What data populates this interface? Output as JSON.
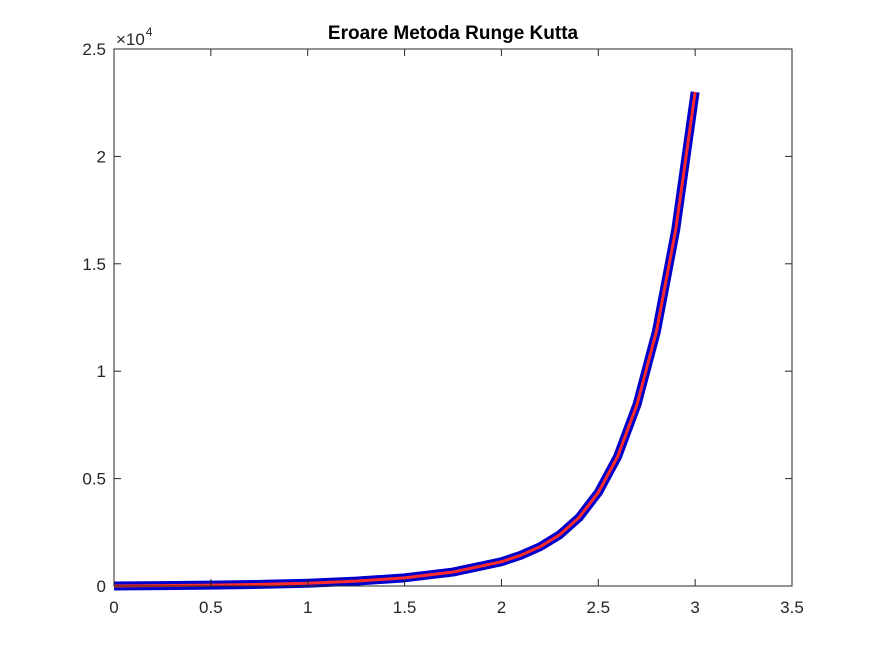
{
  "chart_data": {
    "type": "line",
    "title": "Eroare Metoda Runge Kutta",
    "xlabel": "",
    "ylabel": "",
    "xlim": [
      0,
      3.5
    ],
    "ylim": [
      0,
      25000
    ],
    "grid": false,
    "y_exponent_base": "×10",
    "y_exponent_power": "4",
    "x_ticks": [
      {
        "value": 0,
        "label": "0"
      },
      {
        "value": 0.5,
        "label": "0.5"
      },
      {
        "value": 1,
        "label": "1"
      },
      {
        "value": 1.5,
        "label": "1.5"
      },
      {
        "value": 2,
        "label": "2"
      },
      {
        "value": 2.5,
        "label": "2.5"
      },
      {
        "value": 3,
        "label": "3"
      },
      {
        "value": 3.5,
        "label": "3.5"
      }
    ],
    "y_ticks": [
      {
        "value": 0,
        "label": "0"
      },
      {
        "value": 5000,
        "label": "0.5"
      },
      {
        "value": 10000,
        "label": "1"
      },
      {
        "value": 15000,
        "label": "1.5"
      },
      {
        "value": 20000,
        "label": "2"
      },
      {
        "value": 25000,
        "label": "2.5"
      }
    ],
    "series": [
      {
        "color": "#0000cc",
        "x": [
          0,
          0.25,
          0.5,
          0.75,
          1.0,
          1.25,
          1.5,
          1.75,
          2.0,
          2.1,
          2.2,
          2.3,
          2.4,
          2.5,
          2.6,
          2.7,
          2.8,
          2.9,
          3.0
        ],
        "y": [
          0,
          20,
          40,
          75,
          130,
          225,
          380,
          650,
          1130,
          1430,
          1830,
          2380,
          3180,
          4350,
          6030,
          8450,
          11850,
          16600,
          23000
        ]
      },
      {
        "color": "#ff2a2a",
        "x": [
          0,
          0.25,
          0.5,
          0.75,
          1.0,
          1.25,
          1.5,
          1.75,
          2.0,
          2.1,
          2.2,
          2.3,
          2.4,
          2.5,
          2.6,
          2.7,
          2.8,
          2.9,
          3.0
        ],
        "y": [
          0,
          20,
          40,
          75,
          130,
          225,
          380,
          650,
          1130,
          1430,
          1830,
          2380,
          3180,
          4350,
          6030,
          8450,
          11850,
          16600,
          23000
        ]
      }
    ]
  }
}
